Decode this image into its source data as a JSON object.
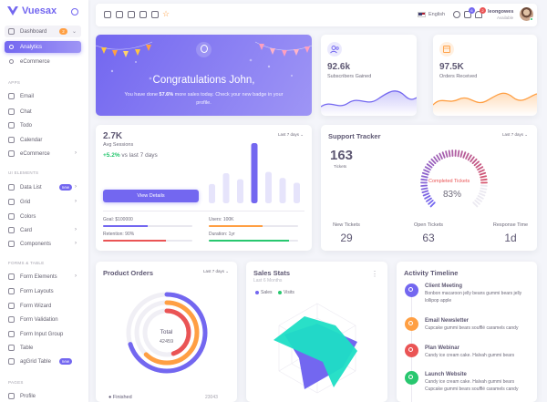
{
  "brand": {
    "name": "Vuesax"
  },
  "sidebar": {
    "items": [
      {
        "label": "Dashboard",
        "badge": "2"
      },
      {
        "label": "Analytics"
      },
      {
        "label": "eCommerce"
      },
      {
        "label": "Email"
      },
      {
        "label": "Chat"
      },
      {
        "label": "Todo"
      },
      {
        "label": "Calendar"
      },
      {
        "label": "eCommerce"
      },
      {
        "label": "Data List",
        "badge": "new"
      },
      {
        "label": "Grid"
      },
      {
        "label": "Colors"
      },
      {
        "label": "Card"
      },
      {
        "label": "Components"
      },
      {
        "label": "Form Elements"
      },
      {
        "label": "Form Layouts"
      },
      {
        "label": "Form Wizard"
      },
      {
        "label": "Form Validation"
      },
      {
        "label": "Form Input Group"
      },
      {
        "label": "Table"
      },
      {
        "label": "agGrid Table",
        "badge": "new"
      },
      {
        "label": "Profile"
      }
    ],
    "sections": [
      "APPS",
      "UI ELEMENTS",
      "FORMS & TABLE",
      "PAGES"
    ]
  },
  "navbar": {
    "language": "English",
    "notif_badge_1": "6",
    "notif_badge_2": "2",
    "user_name": "leongowes",
    "user_status": "Available"
  },
  "congrats": {
    "title": "Congratulations John,",
    "text_pre": "You have done ",
    "text_bold": "57.6%",
    "text_post": " more sales today. Check your new badge in your profile."
  },
  "subscribers": {
    "value": "92.6k",
    "label": "Subscribers Gained",
    "color": "#7367f0"
  },
  "orders_received": {
    "value": "97.5K",
    "label": "Orders Received",
    "color": "#ff9f43"
  },
  "avg_sessions": {
    "value": "2.7K",
    "label": "Avg Sessions",
    "delta": "+5.2%",
    "delta_suffix": " vs last 7 days",
    "range": "Last 7 days",
    "button": "View Details",
    "bar_values": [
      0.32,
      0.5,
      0.4,
      1.0,
      0.52,
      0.42,
      0.34
    ],
    "highlight_index": 3,
    "goals": [
      {
        "label": "Goal: $100000",
        "fill": 0.5,
        "color": "#7367f0"
      },
      {
        "label": "Users: 100K",
        "fill": 0.6,
        "color": "#ff9f43"
      },
      {
        "label": "Retention: 90%",
        "fill": 0.7,
        "color": "#ea5455"
      },
      {
        "label": "Duration: 1yr",
        "fill": 0.9,
        "color": "#28c76f"
      }
    ]
  },
  "support": {
    "title": "Support Tracker",
    "range": "Last 7 days",
    "tickets_value": "163",
    "tickets_label": "Tickets",
    "completed_label": "Completed Tickets",
    "completed_value": "83%",
    "completed_fraction": 0.83,
    "footer": [
      {
        "label": "New Tickets",
        "value": "29"
      },
      {
        "label": "Open Tickets",
        "value": "63"
      },
      {
        "label": "Response Time",
        "value": "1d"
      }
    ]
  },
  "product_orders": {
    "title": "Product Orders",
    "range": "Last 7 days",
    "total_label": "Total",
    "total_value": "42459",
    "rings": [
      {
        "color": "#7367f0",
        "fraction": 0.7
      },
      {
        "color": "#ff9f43",
        "fraction": 0.62
      },
      {
        "color": "#ea5455",
        "fraction": 0.45
      }
    ],
    "finished_label": "Finished",
    "finished_value": "23043"
  },
  "sales_stats": {
    "title": "Sales Stats",
    "subtitle": "Last 6 Months",
    "legend": [
      {
        "name": "Sales",
        "color": "#7367f0"
      },
      {
        "name": "Visits",
        "color": "#28c76f"
      }
    ],
    "colors": {
      "primary": "#7367f0",
      "accent": "#1edec5"
    }
  },
  "activity": {
    "title": "Activity Timeline",
    "events": [
      {
        "title": "Client Meeting",
        "text": "Bonbon macaroon jelly beans gummi bears jelly lollipop apple",
        "color": "#7367f0"
      },
      {
        "title": "Email Newsletter",
        "text": "Cupcake gummi bears soufflé caramels candy",
        "color": "#ff9f43"
      },
      {
        "title": "Plan Webinar",
        "text": "Candy ice cream cake. Halvah gummi bears",
        "color": "#ea5455"
      },
      {
        "title": "Launch Website",
        "text": "Candy ice cream cake. Halvah gummi bears Cupcake gummi bears soufflé caramels candy",
        "color": "#28c76f"
      }
    ]
  }
}
